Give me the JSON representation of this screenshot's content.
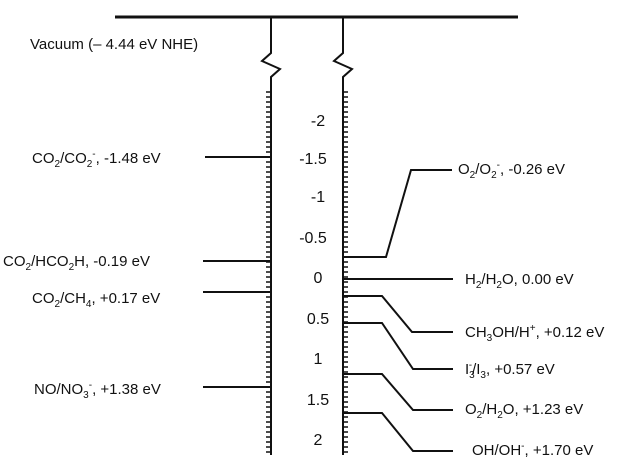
{
  "vacuum_label": "Vacuum (– 4.44 eV NHE)",
  "scale_ticks": [
    "-2",
    "-1.5",
    "-1",
    "-0.5",
    "0",
    "0.5",
    "1",
    "1.5",
    "2"
  ],
  "left_levels": {
    "co2_co2": {
      "a": "CO",
      "s1": "2",
      "b": "/CO",
      "s2": "2",
      "sup": "-",
      "c": ", -1.48 eV"
    },
    "co2_hco2h": {
      "a": "CO",
      "s1": "2",
      "b": "/HCO",
      "s2": "2",
      "c": "H, -0.19 eV"
    },
    "co2_ch4": {
      "a": "CO",
      "s1": "2",
      "b": "/CH",
      "s2": "4",
      "c": ", +0.17 eV"
    },
    "no_no3": {
      "a": "NO/NO",
      "s1": "3",
      "sup": "-",
      "c": ", +1.38 eV"
    }
  },
  "right_levels": {
    "o2_o2": {
      "a": "O",
      "s1": "2",
      "b": "/O",
      "s2": "2",
      "sup": "-",
      "c": ", -0.26 eV"
    },
    "h2_h2o": {
      "a": "H",
      "s1": "2",
      "b": "/H",
      "s2": "2",
      "c": "O, 0.00 eV"
    },
    "ch3oh": {
      "a": "CH",
      "s1": "3",
      "b": "OH/H",
      "sup": "+",
      "c": ", +0.12 eV"
    },
    "i3_i3": {
      "a": "I",
      "s1": "3",
      "sup": "-",
      "b": "/I",
      "s2": "3",
      "c": ", +0.57 eV"
    },
    "o2_h2o": {
      "a": "O",
      "s1": "2",
      "b": "/H",
      "s2": "2",
      "c": "O, +1.23 eV"
    },
    "oh_oh": {
      "a": "OH/OH",
      "sup": "-",
      "c": ", +1.70 eV"
    }
  }
}
